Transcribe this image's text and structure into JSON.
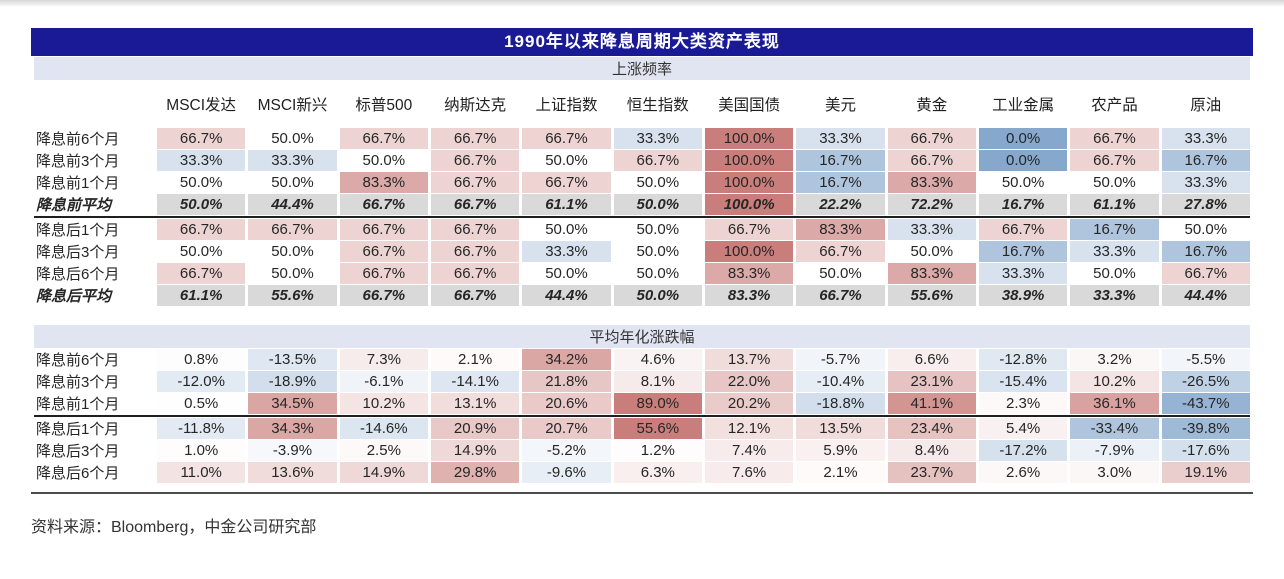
{
  "chart_data": {
    "type": "heatmap-table",
    "title": "1990年以来降息周期大类资产表现",
    "source": "资料来源：Bloomberg，中金公司研究部",
    "columns": [
      "MSCI发达",
      "MSCI新兴",
      "标普500",
      "纳斯达克",
      "上证指数",
      "恒生指数",
      "美国国债",
      "美元",
      "黄金",
      "工业金属",
      "农产品",
      "原油"
    ],
    "value_format": "percent_one_decimal",
    "colors": {
      "title_bg": "#1a1a96",
      "title_fg": "#ffffff",
      "band_bg": "#e1e5f2",
      "positive_max": "#c97e7b",
      "negative_max": "#87a8cd",
      "midpoint_color": "#ffffff",
      "average_row_bg": "#d9d9d9",
      "separator": "#1f1f1f"
    },
    "sections": [
      {
        "header": "上涨频率",
        "midpoint": 50,
        "scale_range": 50,
        "rows": [
          {
            "label": "降息前6个月",
            "is_average": false,
            "separator_after": false,
            "values": [
              66.7,
              50.0,
              66.7,
              66.7,
              66.7,
              33.3,
              100.0,
              33.3,
              66.7,
              0.0,
              66.7,
              33.3
            ]
          },
          {
            "label": "降息前3个月",
            "is_average": false,
            "separator_after": false,
            "values": [
              33.3,
              33.3,
              50.0,
              66.7,
              50.0,
              66.7,
              100.0,
              16.7,
              66.7,
              0.0,
              66.7,
              16.7
            ]
          },
          {
            "label": "降息前1个月",
            "is_average": false,
            "separator_after": false,
            "values": [
              50.0,
              50.0,
              83.3,
              66.7,
              66.7,
              50.0,
              100.0,
              16.7,
              83.3,
              50.0,
              50.0,
              33.3
            ]
          },
          {
            "label": "降息前平均",
            "is_average": true,
            "separator_after": true,
            "values": [
              50.0,
              44.4,
              66.7,
              66.7,
              61.1,
              50.0,
              100.0,
              22.2,
              72.2,
              16.7,
              61.1,
              27.8
            ]
          },
          {
            "label": "降息后1个月",
            "is_average": false,
            "separator_after": false,
            "values": [
              66.7,
              66.7,
              66.7,
              66.7,
              50.0,
              50.0,
              66.7,
              83.3,
              33.3,
              66.7,
              16.7,
              50.0
            ]
          },
          {
            "label": "降息后3个月",
            "is_average": false,
            "separator_after": false,
            "values": [
              50.0,
              50.0,
              66.7,
              66.7,
              33.3,
              50.0,
              100.0,
              66.7,
              50.0,
              16.7,
              33.3,
              16.7
            ]
          },
          {
            "label": "降息后6个月",
            "is_average": false,
            "separator_after": false,
            "values": [
              66.7,
              50.0,
              66.7,
              66.7,
              50.0,
              50.0,
              83.3,
              50.0,
              83.3,
              33.3,
              50.0,
              66.7
            ]
          },
          {
            "label": "降息后平均",
            "is_average": true,
            "separator_after": false,
            "values": [
              61.1,
              55.6,
              66.7,
              66.7,
              44.4,
              50.0,
              83.3,
              66.7,
              55.6,
              38.9,
              33.3,
              44.4
            ]
          }
        ]
      },
      {
        "header": "平均年化涨跌幅",
        "midpoint": 0,
        "scale_range": 50,
        "rows": [
          {
            "label": "降息前6个月",
            "is_average": false,
            "separator_after": false,
            "values": [
              0.8,
              -13.5,
              7.3,
              2.1,
              34.2,
              4.6,
              13.7,
              -5.7,
              6.6,
              -12.8,
              3.2,
              -5.5
            ]
          },
          {
            "label": "降息前3个月",
            "is_average": false,
            "separator_after": false,
            "values": [
              -12.0,
              -18.9,
              -6.1,
              -14.1,
              21.8,
              8.1,
              22.0,
              -10.4,
              23.1,
              -15.4,
              10.2,
              -26.5
            ]
          },
          {
            "label": "降息前1个月",
            "is_average": false,
            "separator_after": true,
            "values": [
              0.5,
              34.5,
              10.2,
              13.1,
              20.6,
              89.0,
              20.2,
              -18.8,
              41.1,
              2.3,
              36.1,
              -43.7
            ]
          },
          {
            "label": "降息后1个月",
            "is_average": false,
            "separator_after": false,
            "values": [
              -11.8,
              34.3,
              -14.6,
              20.9,
              20.7,
              55.6,
              12.1,
              13.5,
              23.4,
              5.4,
              -33.4,
              -39.8
            ]
          },
          {
            "label": "降息后3个月",
            "is_average": false,
            "separator_after": false,
            "values": [
              1.0,
              -3.9,
              2.5,
              14.9,
              -5.2,
              1.2,
              7.4,
              5.9,
              8.4,
              -17.2,
              -7.9,
              -17.6
            ]
          },
          {
            "label": "降息后6个月",
            "is_average": false,
            "separator_after": false,
            "values": [
              11.0,
              13.6,
              14.9,
              29.8,
              -9.6,
              6.3,
              7.6,
              2.1,
              23.7,
              2.6,
              3.0,
              19.1
            ]
          }
        ]
      }
    ]
  }
}
